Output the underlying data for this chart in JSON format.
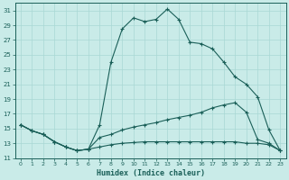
{
  "xlabel": "Humidex (Indice chaleur)",
  "bg_color": "#c9ebe8",
  "grid_color": "#a8d8d4",
  "line_color": "#1a5f58",
  "xlim": [
    -0.5,
    23.5
  ],
  "ylim": [
    11,
    32
  ],
  "xticks": [
    0,
    1,
    2,
    3,
    4,
    5,
    6,
    7,
    8,
    9,
    10,
    11,
    12,
    13,
    14,
    15,
    16,
    17,
    18,
    19,
    20,
    21,
    22,
    23
  ],
  "yticks": [
    11,
    13,
    15,
    17,
    19,
    21,
    23,
    25,
    27,
    29,
    31
  ],
  "curve1_x": [
    0,
    1,
    2,
    3,
    4,
    5,
    6,
    7,
    8,
    9,
    10,
    11,
    12,
    13,
    14,
    15,
    16,
    17,
    18,
    19,
    20,
    21,
    22,
    23
  ],
  "curve1_y": [
    15.5,
    14.7,
    14.2,
    13.2,
    12.5,
    12.0,
    12.2,
    15.5,
    24.0,
    28.5,
    30.0,
    29.5,
    29.8,
    31.2,
    29.8,
    26.7,
    26.5,
    25.8,
    24.0,
    22.0,
    21.0,
    19.3,
    14.8,
    12.0
  ],
  "curve2_x": [
    0,
    1,
    2,
    3,
    4,
    5,
    6,
    7,
    8,
    9,
    10,
    11,
    12,
    13,
    14,
    15,
    16,
    17,
    18,
    19,
    20,
    21,
    22,
    23
  ],
  "curve2_y": [
    15.5,
    14.7,
    14.2,
    13.2,
    12.5,
    12.0,
    12.2,
    13.8,
    14.2,
    14.8,
    15.2,
    15.5,
    15.8,
    16.2,
    16.5,
    16.8,
    17.2,
    17.8,
    18.2,
    18.5,
    17.2,
    13.5,
    13.0,
    12.0
  ],
  "curve3_x": [
    0,
    1,
    2,
    3,
    4,
    5,
    6,
    7,
    8,
    9,
    10,
    11,
    12,
    13,
    14,
    15,
    16,
    17,
    18,
    19,
    20,
    21,
    22,
    23
  ],
  "curve3_y": [
    15.5,
    14.7,
    14.2,
    13.2,
    12.5,
    12.0,
    12.2,
    12.5,
    12.8,
    13.0,
    13.1,
    13.2,
    13.2,
    13.2,
    13.2,
    13.2,
    13.2,
    13.2,
    13.2,
    13.2,
    13.0,
    13.0,
    12.8,
    12.0
  ]
}
